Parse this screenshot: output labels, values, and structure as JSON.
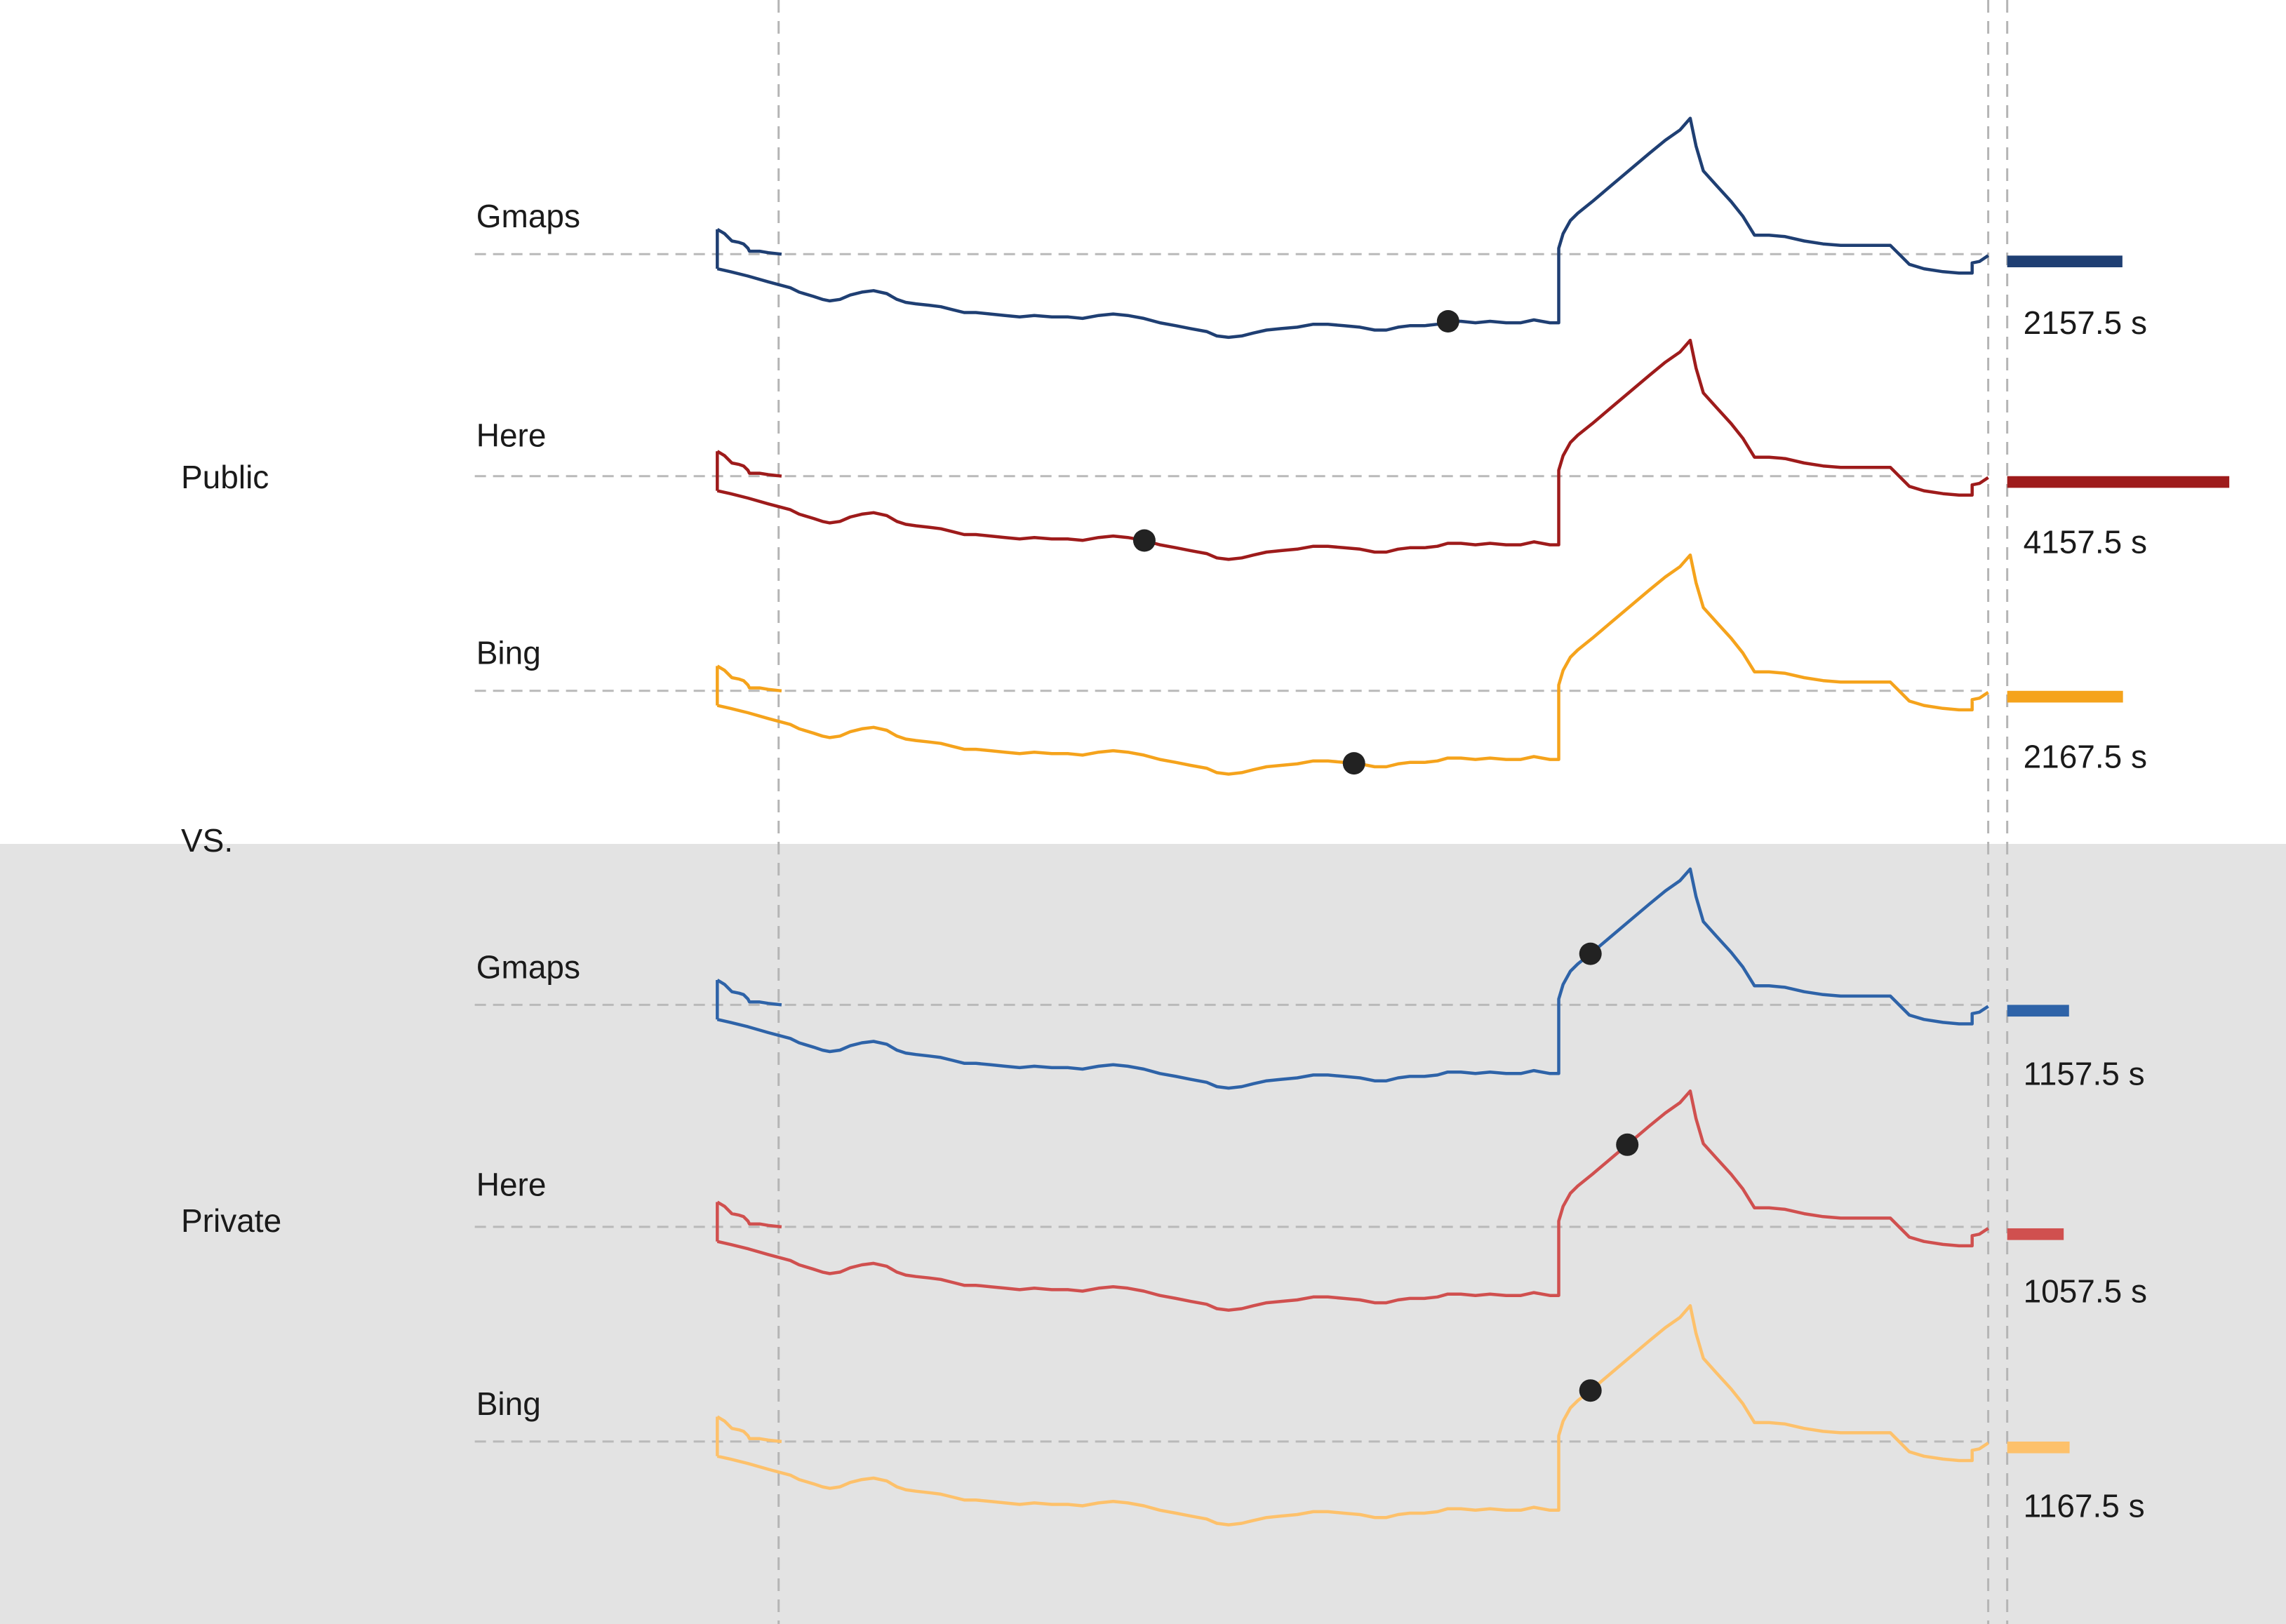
{
  "chart_data": {
    "type": "line",
    "groups": [
      {
        "label": "Public",
        "series": [
          {
            "name": "Gmaps",
            "color": "#1f3f73",
            "value_label": "2157.5 s",
            "duration": 2157.5,
            "marker_fraction": 0.575
          },
          {
            "name": "Here",
            "color": "#9e1b1b",
            "value_label": "4157.5 s",
            "duration": 4157.5,
            "marker_fraction": 0.336
          },
          {
            "name": "Bing",
            "color": "#f5a31c",
            "value_label": "2167.5 s",
            "duration": 2167.5,
            "marker_fraction": 0.501
          }
        ]
      },
      {
        "label": "Private",
        "series": [
          {
            "name": "Gmaps",
            "color": "#2e63a8",
            "value_label": "1157.5 s",
            "duration": 1157.5,
            "marker_fraction": 0.687
          },
          {
            "name": "Here",
            "color": "#d0504f",
            "value_label": "1057.5 s",
            "duration": 1057.5,
            "marker_fraction": 0.716
          },
          {
            "name": "Bing",
            "color": "#fdc16b",
            "value_label": "1167.5 s",
            "duration": 1167.5,
            "marker_fraction": 0.687
          }
        ]
      }
    ],
    "separator_label": "VS.",
    "bar_max_duration": 4157.5
  }
}
